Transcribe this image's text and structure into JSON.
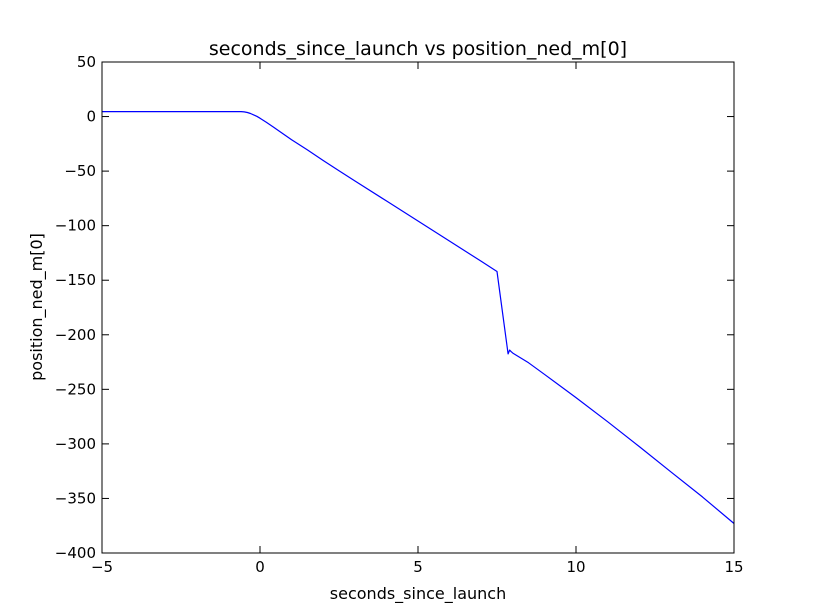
{
  "chart_data": {
    "type": "line",
    "title": "seconds_since_launch vs position_ned_m[0]",
    "xlabel": "seconds_since_launch",
    "ylabel": "position_ned_m[0]",
    "xlim": [
      -5,
      15
    ],
    "ylim": [
      -400,
      50
    ],
    "x_ticks": [
      -5,
      0,
      5,
      10,
      15
    ],
    "y_ticks": [
      50,
      0,
      -50,
      -100,
      -150,
      -200,
      -250,
      -300,
      -350,
      -400
    ],
    "x_tick_labels": [
      "−5",
      "0",
      "5",
      "10",
      "15"
    ],
    "y_tick_labels": [
      "50",
      "0",
      "−50",
      "−100",
      "−150",
      "−200",
      "−250",
      "−300",
      "−350",
      "−400"
    ],
    "grid": false,
    "series": [
      {
        "color": "#0000ff",
        "x": [
          -5.0,
          -4.0,
          -3.0,
          -2.0,
          -1.0,
          -0.6,
          -0.5,
          -0.4,
          -0.3,
          -0.2,
          -0.1,
          0.0,
          0.2,
          0.5,
          1.0,
          1.5,
          2.0,
          2.5,
          3.0,
          4.0,
          5.0,
          6.0,
          7.0,
          7.5,
          7.85,
          7.9,
          7.95,
          8.0,
          8.5,
          9.0,
          10.0,
          11.0,
          12.0,
          13.0,
          14.0,
          15.0
        ],
        "y": [
          4.5,
          4.5,
          4.5,
          4.5,
          4.5,
          4.5,
          4.3,
          3.7,
          2.8,
          1.5,
          0.2,
          -1.5,
          -5.2,
          -11.1,
          -21.2,
          -30.6,
          -40.3,
          -49.6,
          -59.0,
          -77.3,
          -95.7,
          -114.1,
          -132.7,
          -142.0,
          -217.5,
          -214.0,
          -215.5,
          -216.8,
          -225.7,
          -236.2,
          -257.6,
          -279.7,
          -302.4,
          -325.6,
          -348.6,
          -373.0
        ]
      }
    ]
  }
}
